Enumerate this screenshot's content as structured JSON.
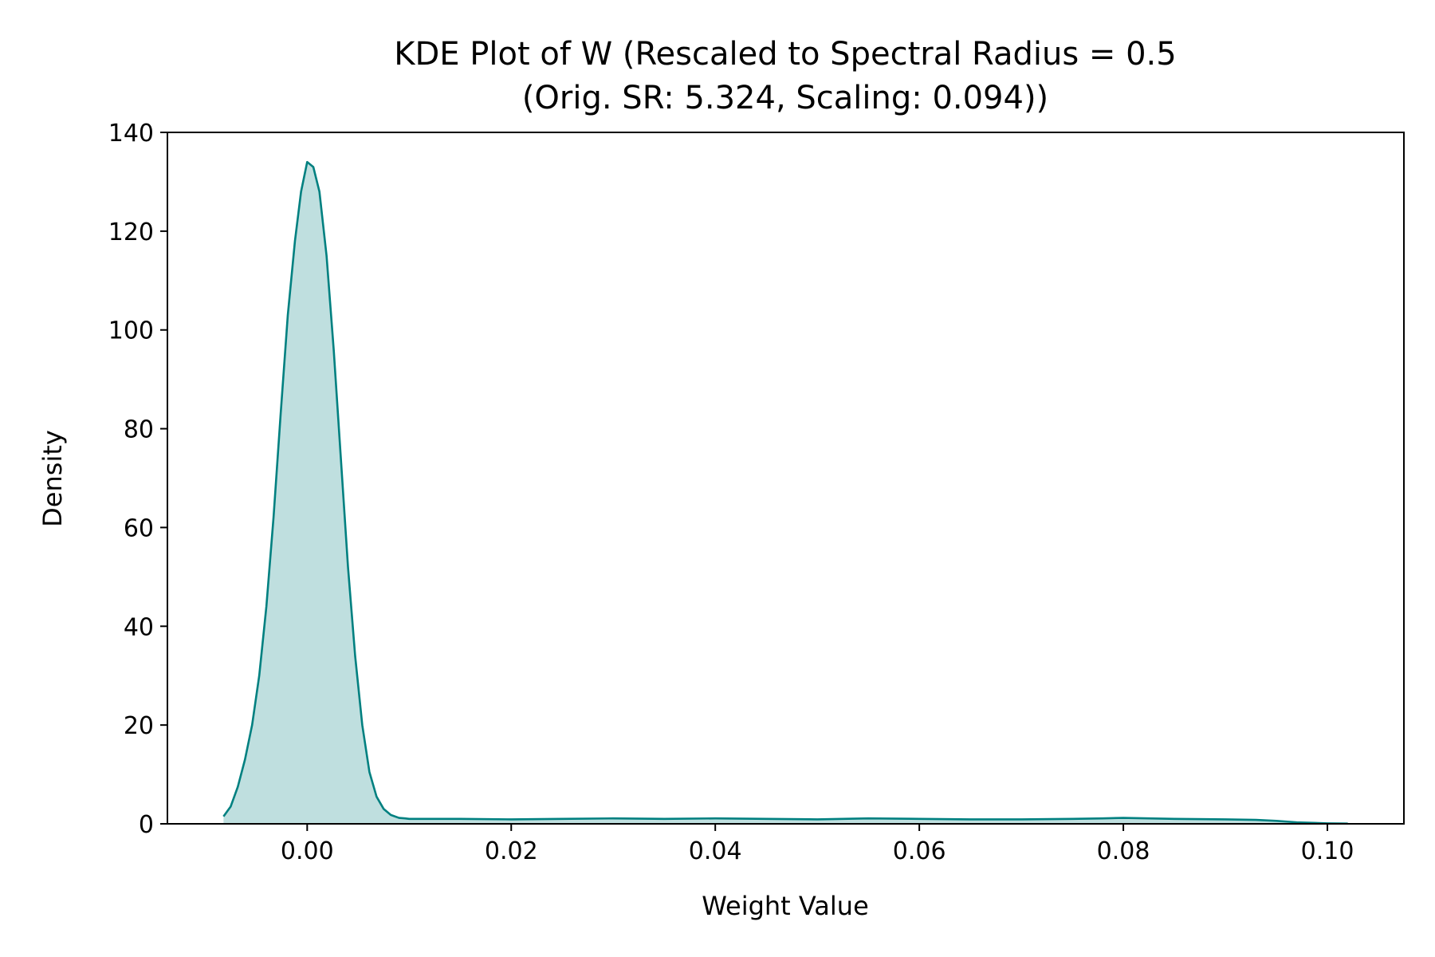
{
  "chart_data": {
    "type": "area",
    "title_line1": "KDE Plot of W (Rescaled to Spectral Radius = 0.5",
    "title_line2": "(Orig. SR: 5.324, Scaling: 0.094))",
    "xlabel": "Weight Value",
    "ylabel": "Density",
    "xlim": [
      -0.0137,
      0.1075
    ],
    "ylim": [
      0,
      140
    ],
    "xticks": [
      0.0,
      0.02,
      0.04,
      0.06,
      0.08,
      0.1
    ],
    "xtick_labels": [
      "0.00",
      "0.02",
      "0.04",
      "0.06",
      "0.08",
      "0.10"
    ],
    "yticks": [
      0,
      20,
      40,
      60,
      80,
      100,
      120,
      140
    ],
    "ytick_labels": [
      "0",
      "20",
      "40",
      "60",
      "80",
      "100",
      "120",
      "140"
    ],
    "grid": false,
    "legend": "none",
    "line_color": "#008080",
    "fill_color": "#008080",
    "fill_opacity": 0.25,
    "series": [
      {
        "x": [
          -0.0082,
          -0.0075,
          -0.0068,
          -0.0061,
          -0.0054,
          -0.0047,
          -0.004,
          -0.0033,
          -0.0026,
          -0.0019,
          -0.0012,
          -0.0006,
          0.0,
          0.0006,
          0.0012,
          0.0019,
          0.0026,
          0.0033,
          0.004,
          0.0047,
          0.0054,
          0.0061,
          0.0068,
          0.0075,
          0.0082,
          0.009,
          0.0096,
          0.01,
          0.011,
          0.012,
          0.015,
          0.02,
          0.025,
          0.03,
          0.035,
          0.04,
          0.045,
          0.05,
          0.055,
          0.06,
          0.065,
          0.07,
          0.075,
          0.078,
          0.08,
          0.085,
          0.09,
          0.093,
          0.095,
          0.097,
          0.1,
          0.102
        ],
        "y": [
          1.5,
          3.5,
          7.5,
          13,
          20,
          30,
          44,
          62,
          83,
          103,
          118,
          128,
          134,
          133,
          128,
          115,
          96,
          74,
          52,
          34,
          20,
          10.5,
          5.5,
          3.0,
          1.8,
          1.2,
          1.1,
          1.0,
          1.0,
          1.0,
          1.0,
          0.9,
          1.0,
          1.1,
          1.0,
          1.1,
          1.0,
          0.9,
          1.1,
          1.0,
          0.9,
          0.9,
          1.0,
          1.1,
          1.2,
          1.0,
          0.9,
          0.8,
          0.6,
          0.3,
          0.1,
          0.05
        ]
      }
    ]
  }
}
